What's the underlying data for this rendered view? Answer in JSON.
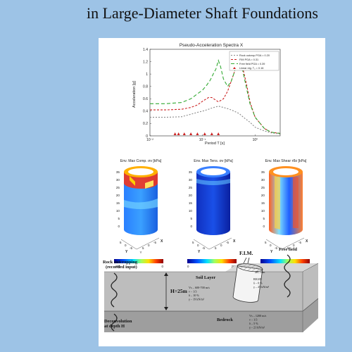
{
  "header": {
    "title": "in Large-Diameter Shaft Foundations"
  },
  "chart_data": {
    "type": "line",
    "title": "Pseudo-Acceleration Spectra X",
    "xlabel": "Period T [s]",
    "ylabel": "Acceleration [g]",
    "xscale": "log",
    "xlim": [
      0.01,
      3
    ],
    "ylim": [
      0,
      1.4
    ],
    "xticks": [
      "10⁻²",
      "10⁻¹",
      "10⁰"
    ],
    "yticks": [
      "0",
      "0.2",
      "0.4",
      "0.6",
      "0.8",
      "1",
      "1.2",
      "1.4"
    ],
    "legend_position": "top-right",
    "series": [
      {
        "name": "Rock outcrop PGA = 0.20",
        "color": "#888888",
        "dash": "2,2",
        "x": [
          0.01,
          0.02,
          0.04,
          0.06,
          0.08,
          0.1,
          0.13,
          0.15,
          0.2,
          0.25,
          0.3,
          0.35,
          0.4,
          0.5,
          0.6,
          0.8,
          1,
          1.5,
          2,
          3
        ],
        "y": [
          0.3,
          0.3,
          0.31,
          0.35,
          0.38,
          0.4,
          0.43,
          0.45,
          0.48,
          0.46,
          0.44,
          0.42,
          0.4,
          0.36,
          0.3,
          0.22,
          0.14,
          0.08,
          0.05,
          0.03
        ]
      },
      {
        "name": "FIM PGA = 0.31",
        "color": "#cc2222",
        "dash": "3,2",
        "x": [
          0.01,
          0.02,
          0.04,
          0.06,
          0.08,
          0.1,
          0.13,
          0.15,
          0.2,
          0.25,
          0.3,
          0.35,
          0.4,
          0.45,
          0.5,
          0.55,
          0.6,
          0.7,
          0.8,
          1,
          1.5,
          2,
          3
        ],
        "y": [
          0.42,
          0.42,
          0.43,
          0.46,
          0.5,
          0.56,
          0.62,
          0.62,
          0.55,
          0.6,
          0.72,
          0.88,
          1.02,
          1.2,
          1.27,
          1.22,
          1.05,
          0.8,
          0.55,
          0.3,
          0.12,
          0.06,
          0.04
        ]
      },
      {
        "name": "Free field PGA = 0.39",
        "color": "#33aa33",
        "dash": "5,3",
        "x": [
          0.01,
          0.02,
          0.04,
          0.06,
          0.08,
          0.1,
          0.12,
          0.14,
          0.16,
          0.18,
          0.2,
          0.22,
          0.25,
          0.3,
          0.35,
          0.4,
          0.45,
          0.5,
          0.55,
          0.6,
          0.7,
          0.8,
          1,
          1.5,
          2,
          3
        ],
        "y": [
          0.52,
          0.52,
          0.54,
          0.6,
          0.68,
          0.74,
          0.82,
          0.9,
          1.0,
          1.08,
          1.22,
          1.12,
          0.92,
          0.8,
          0.88,
          1.02,
          1.18,
          1.24,
          1.16,
          1.0,
          0.74,
          0.52,
          0.3,
          0.12,
          0.06,
          0.04
        ]
      },
      {
        "name": "Linear eig. T₀ = 0.16",
        "color": "#cc2222",
        "marker": "triangle",
        "x": [
          0.03,
          0.035,
          0.045,
          0.06,
          0.08,
          0.11,
          0.15,
          0.2
        ],
        "y": [
          0.02,
          0.02,
          0.02,
          0.02,
          0.02,
          0.02,
          0.02,
          0.02
        ]
      }
    ]
  },
  "colormaps": [
    {
      "title": "Env. Max Comp. σv [kPa]",
      "ticks": [
        "-400",
        "0"
      ]
    },
    {
      "title": "Env. Max Tens. σv [kPa]",
      "ticks": [
        "0",
        "200"
      ]
    },
    {
      "title": "Env. Max Shear τθz [kPa]",
      "ticks": [
        "0",
        "100"
      ]
    }
  ],
  "plot3d": {
    "zticks": [
      "35",
      "30",
      "25",
      "20",
      "15",
      "10",
      "5",
      "0"
    ],
    "axes": [
      "Y",
      "X"
    ],
    "ticks": [
      "5",
      "0",
      "-5"
    ]
  },
  "diagram": {
    "rock_label": "Rock outcropping\n(recorded input)",
    "free_field": "Free field",
    "soil_layer": "Soil Layer",
    "depth": "H=25m",
    "fim": "F.I.M.",
    "soil_props": "Vs – 600-700 m/s\nν – 1/3\nδ – 10 %\nγ – 19 kN/m³",
    "shaft_size": "2R–10m",
    "rigid": "RIGID\nδ – 0 %\nγ – 25 kN/m³",
    "bedrock": "Bedrock",
    "bedrock_props": "Vs – 1200 m/s\nν – 1/3\nδ – 5 %\nγ – 21 kN/m³",
    "deconv": "Deconvolution\nat depth H"
  }
}
